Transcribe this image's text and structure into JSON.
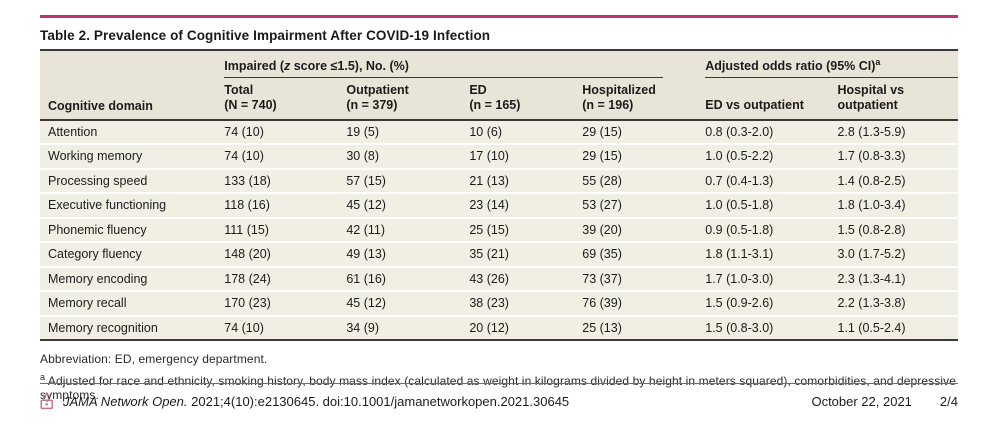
{
  "title": "Table 2. Prevalence of Cognitive Impairment After COVID-19 Infection",
  "colors": {
    "accent": "#c0336e",
    "header_bg": "#e8e5d8",
    "row_bg": "#f1eee4",
    "lock_pink": "#c5788a"
  },
  "table": {
    "domain_header": "Cognitive domain",
    "impaired_spanner": {
      "prefix": "Impaired (",
      "italic": "z",
      "suffix": " score ≤1.5), No. (%)"
    },
    "aor_spanner": {
      "text": "Adjusted odds ratio (95% CI)",
      "sup": "a"
    },
    "subheaders": [
      {
        "label": "Total",
        "n": "(N = 740)"
      },
      {
        "label": "Outpatient",
        "n": "(n = 379)"
      },
      {
        "label": "ED",
        "n": "(n = 165)"
      },
      {
        "label": "Hospitalized",
        "n": "(n = 196)"
      },
      {
        "label": "ED vs outpatient",
        "n": ""
      },
      {
        "label": "Hospital vs outpatient",
        "n": ""
      }
    ],
    "rows": [
      {
        "domain": "Attention",
        "values": [
          "74 (10)",
          "19 (5)",
          "10 (6)",
          "29 (15)",
          "0.8 (0.3-2.0)",
          "2.8 (1.3-5.9)"
        ]
      },
      {
        "domain": "Working memory",
        "values": [
          "74 (10)",
          "30 (8)",
          "17 (10)",
          "29 (15)",
          "1.0 (0.5-2.2)",
          "1.7 (0.8-3.3)"
        ]
      },
      {
        "domain": "Processing speed",
        "values": [
          "133 (18)",
          "57 (15)",
          "21 (13)",
          "55 (28)",
          "0.7 (0.4-1.3)",
          "1.4 (0.8-2.5)"
        ]
      },
      {
        "domain": "Executive functioning",
        "values": [
          "118 (16)",
          "45 (12)",
          "23 (14)",
          "53 (27)",
          "1.0 (0.5-1.8)",
          "1.8 (1.0-3.4)"
        ]
      },
      {
        "domain": "Phonemic fluency",
        "values": [
          "111 (15)",
          "42 (11)",
          "25 (15)",
          "39 (20)",
          "0.9 (0.5-1.8)",
          "1.5 (0.8-2.8)"
        ]
      },
      {
        "domain": "Category fluency",
        "values": [
          "148 (20)",
          "49 (13)",
          "35 (21)",
          "69 (35)",
          "1.8 (1.1-3.1)",
          "3.0 (1.7-5.2)"
        ]
      },
      {
        "domain": "Memory encoding",
        "values": [
          "178 (24)",
          "61 (16)",
          "43 (26)",
          "73 (37)",
          "1.7 (1.0-3.0)",
          "2.3 (1.3-4.1)"
        ]
      },
      {
        "domain": "Memory recall",
        "values": [
          "170 (23)",
          "45 (12)",
          "38 (23)",
          "76 (39)",
          "1.5 (0.9-2.6)",
          "2.2 (1.3-3.8)"
        ]
      },
      {
        "domain": "Memory recognition",
        "values": [
          "74 (10)",
          "34 (9)",
          "20 (12)",
          "25 (13)",
          "1.5 (0.8-3.0)",
          "1.1 (0.5-2.4)"
        ]
      }
    ]
  },
  "footnotes": {
    "abbreviation": "Abbreviation: ED, emergency department.",
    "a_sup": "a",
    "a_text": "Adjusted for race and ethnicity, smoking history, body mass index (calculated as weight in kilograms divided by height in meters squared), comorbidities, and depressive symptoms."
  },
  "footer": {
    "journal": "JAMA Network Open.",
    "citation": " 2021;4(10):e2130645. doi:10.1001/jamanetworkopen.2021.30645",
    "date": "October 22, 2021",
    "page": "2/4"
  }
}
